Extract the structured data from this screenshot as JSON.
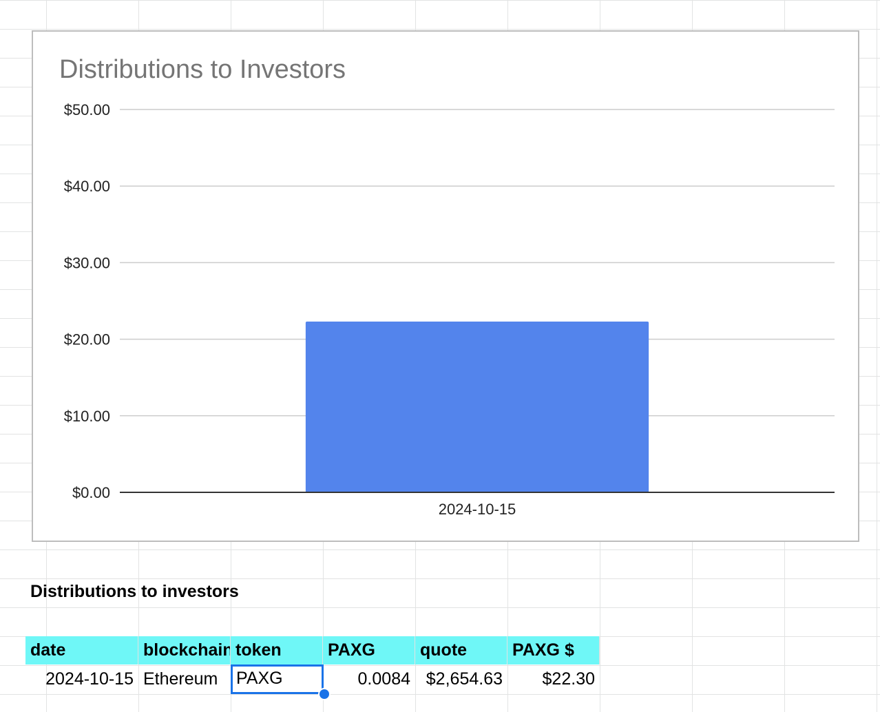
{
  "chart_data": {
    "type": "bar",
    "title": "Distributions to Investors",
    "categories": [
      "2024-10-15"
    ],
    "values": [
      22.3
    ],
    "ylim": [
      0,
      50
    ],
    "yticks": [
      "$0.00",
      "$10.00",
      "$20.00",
      "$30.00",
      "$40.00",
      "$50.00"
    ],
    "ytick_values": [
      0,
      10,
      20,
      30,
      40,
      50
    ],
    "xlabel": "",
    "ylabel": "",
    "grid": true,
    "color": "#5384ec"
  },
  "section": {
    "title": "Distributions to investors"
  },
  "table": {
    "headers": [
      "date",
      "blockchain",
      "token",
      "PAXG",
      "quote",
      "PAXG $"
    ],
    "rows": [
      [
        "2024-10-15",
        "Ethereum",
        "PAXG",
        "0.0084",
        "$2,654.63",
        "$22.30"
      ]
    ]
  },
  "colors": {
    "header_bg": "#6ff7f7",
    "selection": "#1a73e8"
  }
}
